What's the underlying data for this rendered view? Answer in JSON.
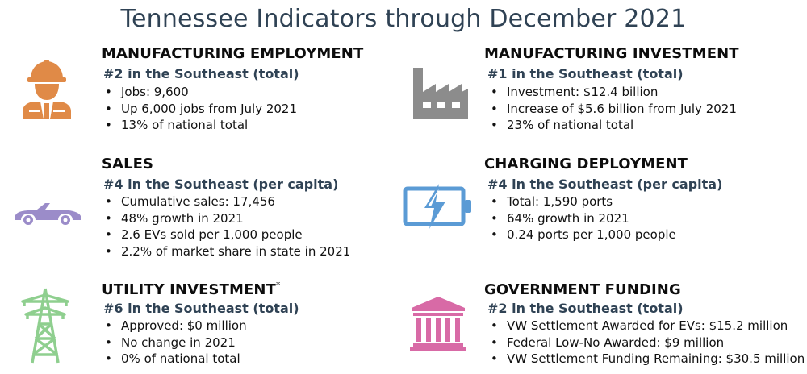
{
  "title": "Tennessee Indicators through December 2021",
  "colors": {
    "title": "#2f4254",
    "rank": "#2f4254",
    "worker_icon": "#e08a47",
    "factory_icon": "#8c8c8c",
    "car_icon": "#9b8cc9",
    "battery_icon": "#5b9bd5",
    "tower_icon": "#8fcf8f",
    "bank_icon": "#d86aa6"
  },
  "sections": {
    "manufacturing_employment": {
      "icon": "worker-icon",
      "heading": "MANUFACTURING EMPLOYMENT",
      "rank": "#2 in the Southeast (total)",
      "bullets": [
        "Jobs: 9,600",
        "Up 6,000 jobs from July 2021",
        "13% of national total"
      ]
    },
    "manufacturing_investment": {
      "icon": "factory-icon",
      "heading": "MANUFACTURING INVESTMENT",
      "rank": "#1 in the Southeast (total)",
      "bullets": [
        "Investment: $12.4 billion",
        "Increase of $5.6 billion from July 2021",
        "23% of national total"
      ]
    },
    "sales": {
      "icon": "car-icon",
      "heading": "SALES",
      "rank": "#4 in the Southeast (per capita)",
      "bullets": [
        "Cumulative sales: 17,456",
        "48% growth in 2021",
        "2.6 EVs sold per 1,000 people",
        "2.2% of market share in state in 2021"
      ]
    },
    "charging_deployment": {
      "icon": "battery-charging-icon",
      "heading": "CHARGING DEPLOYMENT",
      "rank": "#4 in the Southeast (per capita)",
      "bullets": [
        "Total: 1,590 ports",
        "64% growth in 2021",
        "0.24 ports per 1,000 people"
      ]
    },
    "utility_investment": {
      "icon": "power-tower-icon",
      "heading": "UTILITY INVESTMENT",
      "heading_mark": "*",
      "rank": "#6 in the Southeast (total)",
      "bullets": [
        "Approved: $0 million",
        "No change in 2021",
        "0% of national total"
      ]
    },
    "government_funding": {
      "icon": "bank-icon",
      "heading": "GOVERNMENT FUNDING",
      "rank": "#2 in the Southeast (total)",
      "bullets": [
        "VW Settlement Awarded for EVs: $15.2 million",
        "Federal Low-No Awarded: $9 million",
        "VW Settlement Funding Remaining: $30.5 million"
      ]
    }
  }
}
